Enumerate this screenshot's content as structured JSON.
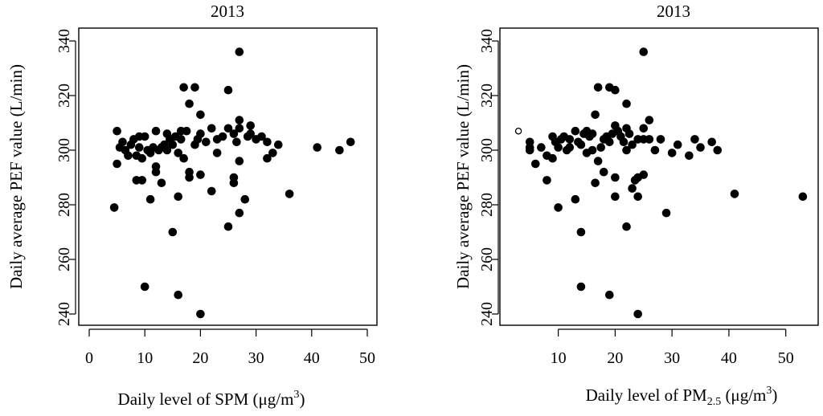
{
  "chart_data": [
    {
      "type": "scatter",
      "title": "2013",
      "xlabel_prefix": "Daily level of SPM (",
      "xlabel_unit": "μg/m",
      "xlabel_sup": "3",
      "xlabel_suffix": ")",
      "ylabel": "Daily average PEF value (L/min)",
      "xlim": [
        0,
        50
      ],
      "ylim": [
        240,
        340
      ],
      "xticks": [
        0,
        10,
        20,
        30,
        40,
        50
      ],
      "yticks": [
        240,
        260,
        280,
        300,
        320,
        340
      ],
      "grid": false,
      "points": [
        [
          4.5,
          279
        ],
        [
          5,
          307
        ],
        [
          5,
          295
        ],
        [
          5.5,
          301
        ],
        [
          6,
          303
        ],
        [
          6.5,
          300
        ],
        [
          7,
          298
        ],
        [
          7.5,
          302
        ],
        [
          8,
          304
        ],
        [
          8.5,
          289
        ],
        [
          8.5,
          298
        ],
        [
          9,
          305
        ],
        [
          9,
          301
        ],
        [
          9.5,
          289
        ],
        [
          9.5,
          297
        ],
        [
          10,
          305
        ],
        [
          10,
          250
        ],
        [
          10.5,
          300
        ],
        [
          11,
          282
        ],
        [
          11,
          299
        ],
        [
          11.5,
          301
        ],
        [
          12,
          307
        ],
        [
          12,
          294
        ],
        [
          12,
          292
        ],
        [
          12.5,
          300
        ],
        [
          13,
          288
        ],
        [
          13,
          301
        ],
        [
          13.5,
          302
        ],
        [
          14,
          300
        ],
        [
          14,
          306
        ],
        [
          14.5,
          304
        ],
        [
          15,
          270
        ],
        [
          15,
          302
        ],
        [
          15.5,
          305
        ],
        [
          16,
          299
        ],
        [
          16,
          283
        ],
        [
          16,
          247
        ],
        [
          16.5,
          307
        ],
        [
          16.5,
          304
        ],
        [
          17,
          323
        ],
        [
          17,
          297
        ],
        [
          17.5,
          307
        ],
        [
          18,
          317
        ],
        [
          18,
          292
        ],
        [
          18,
          290
        ],
        [
          19,
          323
        ],
        [
          19,
          302
        ],
        [
          19.5,
          304
        ],
        [
          20,
          313
        ],
        [
          20,
          306
        ],
        [
          20,
          291
        ],
        [
          20,
          240
        ],
        [
          21,
          303
        ],
        [
          22,
          285
        ],
        [
          22,
          308
        ],
        [
          23,
          299
        ],
        [
          23,
          304
        ],
        [
          24,
          305
        ],
        [
          25,
          322
        ],
        [
          25,
          308
        ],
        [
          25,
          272
        ],
        [
          26,
          306
        ],
        [
          26,
          290
        ],
        [
          26,
          288
        ],
        [
          26.5,
          303
        ],
        [
          27,
          336
        ],
        [
          27,
          311
        ],
        [
          27,
          308
        ],
        [
          27,
          296
        ],
        [
          27,
          277
        ],
        [
          28,
          282
        ],
        [
          28.5,
          305
        ],
        [
          29,
          309
        ],
        [
          29,
          306
        ],
        [
          30,
          304
        ],
        [
          31,
          305
        ],
        [
          32,
          303
        ],
        [
          32,
          297
        ],
        [
          33,
          299
        ],
        [
          34,
          302
        ],
        [
          36,
          284
        ],
        [
          41,
          301
        ],
        [
          45,
          300
        ],
        [
          47,
          303
        ]
      ]
    },
    {
      "type": "scatter",
      "title": "2013",
      "xlabel_prefix": "Daily level of PM",
      "xlabel_sub": "2.5",
      "xlabel_mid": " (μg/m",
      "xlabel_sup": "3",
      "xlabel_suffix": ")",
      "ylabel": "Daily average PEF value (L/min)",
      "xlim": [
        2,
        54
      ],
      "ylim": [
        240,
        340
      ],
      "xticks": [
        10,
        20,
        30,
        40,
        50
      ],
      "yticks": [
        240,
        260,
        280,
        300,
        320,
        340
      ],
      "grid": false,
      "open_points": [
        [
          3,
          307
        ]
      ],
      "points": [
        [
          5,
          303
        ],
        [
          5,
          301
        ],
        [
          5,
          300
        ],
        [
          6,
          295
        ],
        [
          7,
          301
        ],
        [
          8,
          289
        ],
        [
          8,
          298
        ],
        [
          9,
          305
        ],
        [
          9,
          297
        ],
        [
          9.5,
          303
        ],
        [
          10,
          279
        ],
        [
          10,
          301
        ],
        [
          10.5,
          304
        ],
        [
          11,
          305
        ],
        [
          11.5,
          300
        ],
        [
          12,
          301
        ],
        [
          12,
          304
        ],
        [
          13,
          282
        ],
        [
          13,
          307
        ],
        [
          13.5,
          303
        ],
        [
          14,
          270
        ],
        [
          14,
          250
        ],
        [
          14,
          302
        ],
        [
          14.5,
          306
        ],
        [
          15,
          307
        ],
        [
          15,
          299
        ],
        [
          15.5,
          305
        ],
        [
          16,
          306
        ],
        [
          16,
          300
        ],
        [
          16.5,
          288
        ],
        [
          16.5,
          313
        ],
        [
          17,
          323
        ],
        [
          17,
          296
        ],
        [
          17.5,
          301
        ],
        [
          18,
          292
        ],
        [
          18,
          304
        ],
        [
          18.5,
          305
        ],
        [
          19,
          323
        ],
        [
          19,
          303
        ],
        [
          19,
          247
        ],
        [
          19.5,
          306
        ],
        [
          20,
          322
        ],
        [
          20,
          309
        ],
        [
          20,
          290
        ],
        [
          20,
          283
        ],
        [
          20.5,
          307
        ],
        [
          21,
          305
        ],
        [
          21.5,
          303
        ],
        [
          22,
          317
        ],
        [
          22,
          308
        ],
        [
          22,
          300
        ],
        [
          22,
          272
        ],
        [
          22.5,
          306
        ],
        [
          23,
          286
        ],
        [
          23,
          302
        ],
        [
          23.5,
          289
        ],
        [
          24,
          240
        ],
        [
          24,
          283
        ],
        [
          24,
          290
        ],
        [
          24,
          304
        ],
        [
          25,
          336
        ],
        [
          25,
          308
        ],
        [
          25,
          304
        ],
        [
          25,
          291
        ],
        [
          26,
          311
        ],
        [
          26,
          304
        ],
        [
          27,
          300
        ],
        [
          28,
          304
        ],
        [
          29,
          277
        ],
        [
          30,
          299
        ],
        [
          31,
          302
        ],
        [
          33,
          298
        ],
        [
          34,
          304
        ],
        [
          35,
          301
        ],
        [
          37,
          303
        ],
        [
          38,
          300
        ],
        [
          41,
          284
        ],
        [
          53,
          283
        ]
      ]
    }
  ]
}
